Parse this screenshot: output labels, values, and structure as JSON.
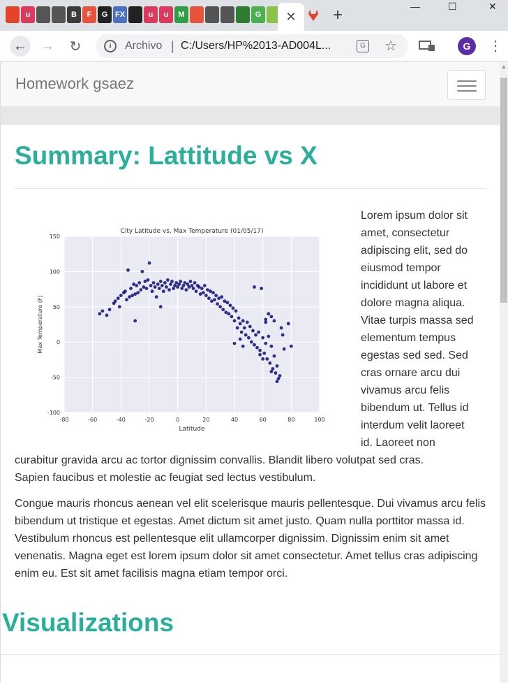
{
  "browser": {
    "omnibox_label": "Archivo",
    "url": "C:/Users/HP%2013-AD004L...",
    "profile_initial": "G",
    "close_tab_glyph": "✕",
    "new_tab_glyph": "+",
    "win_minimize": "—",
    "win_maximize": "☐",
    "win_close": "✕",
    "favicon_letters": [
      "",
      "u",
      "",
      "",
      "B",
      "F",
      "G",
      "FX",
      "",
      "u",
      "u",
      "M",
      "",
      "",
      "",
      "",
      "G",
      ""
    ],
    "favicon_colors": [
      "#e24329",
      "#d93a5d",
      "#555555",
      "#555555",
      "#3b3b3b",
      "#e8533b",
      "#222222",
      "#4c6fbf",
      "#222222",
      "#d93a5d",
      "#d93a5d",
      "#2f9e44",
      "#e8533b",
      "#555555",
      "#555555",
      "#2f7d32",
      "#4caf50",
      "#8bc34a"
    ]
  },
  "page": {
    "brand": "Homework gsaez",
    "heading": "Summary: Lattitude vs X",
    "para1_right_lines": [
      "Lorem ipsum dolor sit",
      "amet, consectetur",
      "adipiscing elit, sed do",
      "eiusmod tempor",
      "incididunt ut labore et",
      "dolore magna aliqua.",
      "Vitae turpis massa sed",
      "elementum tempus",
      "egestas sed sed. Sed",
      "cras ornare arcu dui",
      "vivamus arcu felis",
      "bibendum ut. Tellus id",
      "interdum velit laoreet",
      "id. Laoreet non"
    ],
    "para1_full_lines": [
      "curabitur gravida arcu ac tortor dignissim convallis. Blandit libero volutpat sed cras.",
      "Sapien faucibus et molestie ac feugiat sed lectus vestibulum."
    ],
    "para2": "Congue mauris rhoncus aenean vel elit scelerisque mauris pellentesque. Dui vivamus arcu felis bibendum ut tristique et egestas. Amet dictum sit amet justo. Quam nulla porttitor massa id. Vestibulum rhoncus est pellentesque elit ullamcorper dignissim. Dignissim enim sit amet venenatis. Magna eget est lorem ipsum dolor sit amet consectetur. Amet tellus cras adipiscing enim eu. Est sit amet facilisis magna etiam tempor orci.",
    "heading2": "Visualizations"
  },
  "colors": {
    "accent": "#2ab09a",
    "point": "#0d0d7a",
    "plot_bg": "#eaeaf2"
  },
  "chart_data": {
    "type": "scatter",
    "title": "City Latitude vs. Max Temperature (01/05/17)",
    "xlabel": "Latitude",
    "ylabel": "Max Temperature (F)",
    "xlim": [
      -80,
      100
    ],
    "ylim": [
      -100,
      150
    ],
    "xticks": [
      -80,
      -60,
      -40,
      -20,
      0,
      20,
      40,
      60,
      80,
      100
    ],
    "yticks": [
      -100,
      -50,
      0,
      50,
      100,
      150
    ],
    "grid": true,
    "points": [
      [
        -55,
        40
      ],
      [
        -53,
        44
      ],
      [
        -50,
        38
      ],
      [
        -48,
        46
      ],
      [
        -45,
        55
      ],
      [
        -44,
        58
      ],
      [
        -42,
        62
      ],
      [
        -41,
        50
      ],
      [
        -40,
        66
      ],
      [
        -38,
        70
      ],
      [
        -37,
        72
      ],
      [
        -36,
        60
      ],
      [
        -35,
        102
      ],
      [
        -34,
        64
      ],
      [
        -33,
        76
      ],
      [
        -32,
        66
      ],
      [
        -31,
        82
      ],
      [
        -30,
        68
      ],
      [
        -29,
        80
      ],
      [
        -28,
        70
      ],
      [
        -27,
        84
      ],
      [
        -26,
        74
      ],
      [
        -25,
        100
      ],
      [
        -24,
        78
      ],
      [
        -23,
        86
      ],
      [
        -22,
        76
      ],
      [
        -21,
        88
      ],
      [
        -20,
        112
      ],
      [
        -19,
        80
      ],
      [
        -18,
        72
      ],
      [
        -17,
        84
      ],
      [
        -16,
        78
      ],
      [
        -15,
        64
      ],
      [
        -14,
        82
      ],
      [
        -13,
        76
      ],
      [
        -12,
        86
      ],
      [
        -11,
        80
      ],
      [
        -10,
        72
      ],
      [
        -9,
        84
      ],
      [
        -8,
        78
      ],
      [
        -7,
        88
      ],
      [
        -6,
        74
      ],
      [
        -5,
        82
      ],
      [
        -4,
        86
      ],
      [
        -3,
        76
      ],
      [
        -2,
        80
      ],
      [
        -1,
        84
      ],
      [
        0,
        78
      ],
      [
        1,
        82
      ],
      [
        2,
        86
      ],
      [
        3,
        76
      ],
      [
        4,
        80
      ],
      [
        5,
        84
      ],
      [
        6,
        74
      ],
      [
        7,
        82
      ],
      [
        8,
        78
      ],
      [
        9,
        86
      ],
      [
        10,
        80
      ],
      [
        11,
        76
      ],
      [
        12,
        84
      ],
      [
        13,
        72
      ],
      [
        14,
        80
      ],
      [
        15,
        78
      ],
      [
        16,
        68
      ],
      [
        17,
        76
      ],
      [
        18,
        70
      ],
      [
        19,
        80
      ],
      [
        20,
        66
      ],
      [
        21,
        74
      ],
      [
        22,
        62
      ],
      [
        23,
        72
      ],
      [
        24,
        58
      ],
      [
        25,
        70
      ],
      [
        26,
        60
      ],
      [
        27,
        66
      ],
      [
        28,
        54
      ],
      [
        29,
        62
      ],
      [
        30,
        50
      ],
      [
        31,
        64
      ],
      [
        32,
        46
      ],
      [
        33,
        58
      ],
      [
        34,
        42
      ],
      [
        35,
        56
      ],
      [
        36,
        40
      ],
      [
        37,
        52
      ],
      [
        38,
        36
      ],
      [
        39,
        48
      ],
      [
        40,
        30
      ],
      [
        41,
        44
      ],
      [
        42,
        20
      ],
      [
        43,
        34
      ],
      [
        44,
        26
      ],
      [
        45,
        14
      ],
      [
        46,
        30
      ],
      [
        47,
        20
      ],
      [
        48,
        10
      ],
      [
        49,
        28
      ],
      [
        50,
        6
      ],
      [
        51,
        22
      ],
      [
        52,
        0
      ],
      [
        53,
        16
      ],
      [
        54,
        -4
      ],
      [
        55,
        10
      ],
      [
        56,
        -8
      ],
      [
        57,
        14
      ],
      [
        58,
        -12
      ],
      [
        59,
        76
      ],
      [
        60,
        6
      ],
      [
        61,
        -16
      ],
      [
        62,
        -2
      ],
      [
        63,
        -24
      ],
      [
        64,
        8
      ],
      [
        65,
        -30
      ],
      [
        66,
        -6
      ],
      [
        67,
        -38
      ],
      [
        68,
        -20
      ],
      [
        69,
        -44
      ],
      [
        70,
        -34
      ],
      [
        71,
        -52
      ],
      [
        72,
        -48
      ],
      [
        73,
        20
      ],
      [
        74,
        10
      ],
      [
        75,
        -10
      ],
      [
        78,
        26
      ],
      [
        80,
        -6
      ],
      [
        64,
        40
      ],
      [
        66,
        36
      ],
      [
        62,
        28
      ],
      [
        54,
        78
      ],
      [
        68,
        30
      ],
      [
        -12,
        50
      ],
      [
        -30,
        30
      ],
      [
        40,
        -2
      ],
      [
        44,
        4
      ],
      [
        46,
        -6
      ],
      [
        58,
        -18
      ],
      [
        60,
        -24
      ],
      [
        66,
        -42
      ],
      [
        70,
        -56
      ],
      [
        62,
        32
      ]
    ]
  }
}
